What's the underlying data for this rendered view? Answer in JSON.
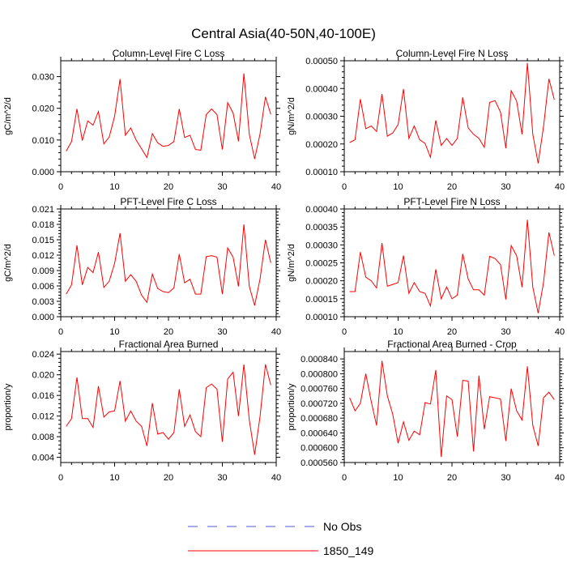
{
  "figure": {
    "title": "Central Asia(40-50N,40-100E)"
  },
  "legend": {
    "entries": [
      {
        "label": "No Obs",
        "color": "#4b5bd6",
        "dashed": true
      },
      {
        "label": "1850_149",
        "color": "#ff0000",
        "dashed": false
      }
    ]
  },
  "chart_data": [
    {
      "type": "line",
      "title": "Column-Level Fire C Loss",
      "ylabel": "gC/m^2/d",
      "xlim": [
        0,
        40
      ],
      "ylim": [
        0,
        0.035
      ],
      "xticks": [
        0,
        10,
        20,
        30,
        40
      ],
      "xtick_labels": [
        "0",
        "10",
        "20",
        "30",
        "40"
      ],
      "yticks": [
        0,
        0.01,
        0.02,
        0.03
      ],
      "ytick_labels": [
        "0.000",
        "0.010",
        "0.020",
        "0.030"
      ],
      "x": [
        1,
        2,
        3,
        4,
        5,
        6,
        7,
        8,
        9,
        10,
        11,
        12,
        13,
        14,
        15,
        16,
        17,
        18,
        19,
        20,
        21,
        22,
        23,
        24,
        25,
        26,
        27,
        28,
        29,
        30,
        31,
        32,
        33,
        34,
        35,
        36,
        37,
        38,
        39
      ],
      "series": [
        {
          "name": "1850_149",
          "color": "#ff0000",
          "values": [
            0.0065,
            0.0095,
            0.0198,
            0.0098,
            0.016,
            0.0147,
            0.019,
            0.0088,
            0.0109,
            0.0175,
            0.0292,
            0.0115,
            0.0138,
            0.01,
            0.0072,
            0.0045,
            0.012,
            0.0091,
            0.008,
            0.0083,
            0.0095,
            0.0198,
            0.0108,
            0.0115,
            0.007,
            0.0068,
            0.018,
            0.0198,
            0.018,
            0.007,
            0.0218,
            0.0185,
            0.0096,
            0.031,
            0.0118,
            0.004,
            0.012,
            0.0236,
            0.0181
          ]
        }
      ]
    },
    {
      "type": "line",
      "title": "Column-Level Fire N Loss",
      "ylabel": "gN/m^2/d",
      "xlim": [
        0,
        40
      ],
      "ylim": [
        0.0001,
        0.0005
      ],
      "xticks": [
        0,
        10,
        20,
        30,
        40
      ],
      "xtick_labels": [
        "0",
        "10",
        "20",
        "30",
        "40"
      ],
      "yticks": [
        0.0001,
        0.0002,
        0.0003,
        0.0004,
        0.0005
      ],
      "ytick_labels": [
        "0.00010",
        "0.00020",
        "0.00030",
        "0.00040",
        "0.00050"
      ],
      "x": [
        1,
        2,
        3,
        4,
        5,
        6,
        7,
        8,
        9,
        10,
        11,
        12,
        13,
        14,
        15,
        16,
        17,
        18,
        19,
        20,
        21,
        22,
        23,
        24,
        25,
        26,
        27,
        28,
        29,
        30,
        31,
        32,
        33,
        34,
        35,
        36,
        37,
        38,
        39
      ],
      "series": [
        {
          "name": "1850_149",
          "color": "#ff0000",
          "values": [
            0.000205,
            0.000215,
            0.000362,
            0.000255,
            0.000265,
            0.000245,
            0.00038,
            0.000228,
            0.00024,
            0.00027,
            0.000398,
            0.00022,
            0.000265,
            0.000215,
            0.000202,
            0.000152,
            0.000285,
            0.000195,
            0.00022,
            0.000195,
            0.00022,
            0.000368,
            0.000258,
            0.000235,
            0.00022,
            0.000188,
            0.00035,
            0.000356,
            0.000315,
            0.000185,
            0.000392,
            0.000355,
            0.000235,
            0.000492,
            0.000235,
            0.00013,
            0.000262,
            0.000435,
            0.00036
          ]
        }
      ]
    },
    {
      "type": "line",
      "title": "PFT-Level Fire C Loss",
      "ylabel": "gC/m^2/d",
      "xlim": [
        0,
        40
      ],
      "ylim": [
        0,
        0.021
      ],
      "xticks": [
        0,
        10,
        20,
        30,
        40
      ],
      "xtick_labels": [
        "0",
        "10",
        "20",
        "30",
        "40"
      ],
      "yticks": [
        0,
        0.003,
        0.006,
        0.009,
        0.012,
        0.015,
        0.018,
        0.021
      ],
      "ytick_labels": [
        "0.000",
        "0.003",
        "0.006",
        "0.009",
        "0.012",
        "0.015",
        "0.018",
        "0.021"
      ],
      "x": [
        1,
        2,
        3,
        4,
        5,
        6,
        7,
        8,
        9,
        10,
        11,
        12,
        13,
        14,
        15,
        16,
        17,
        18,
        19,
        20,
        21,
        22,
        23,
        24,
        25,
        26,
        27,
        28,
        29,
        30,
        31,
        32,
        33,
        34,
        35,
        36,
        37,
        38,
        39
      ],
      "series": [
        {
          "name": "1850_149",
          "color": "#ff0000",
          "values": [
            0.0044,
            0.0062,
            0.0139,
            0.0062,
            0.0096,
            0.0086,
            0.0126,
            0.0057,
            0.0069,
            0.0104,
            0.0163,
            0.0069,
            0.0082,
            0.0069,
            0.0042,
            0.0028,
            0.0083,
            0.0055,
            0.0049,
            0.0047,
            0.0056,
            0.0122,
            0.0066,
            0.0073,
            0.0044,
            0.0044,
            0.0117,
            0.0119,
            0.0116,
            0.0044,
            0.0134,
            0.0116,
            0.0059,
            0.018,
            0.0059,
            0.0022,
            0.0074,
            0.015,
            0.0105
          ]
        }
      ]
    },
    {
      "type": "line",
      "title": "PFT-Level Fire N Loss",
      "ylabel": "gN/m^2/d",
      "xlim": [
        0,
        40
      ],
      "ylim": [
        0.0001,
        0.0004
      ],
      "xticks": [
        0,
        10,
        20,
        30,
        40
      ],
      "xtick_labels": [
        "0",
        "10",
        "20",
        "30",
        "40"
      ],
      "yticks": [
        0.0001,
        0.00015,
        0.0002,
        0.00025,
        0.0003,
        0.00035,
        0.0004
      ],
      "ytick_labels": [
        "0.00010",
        "0.00015",
        "0.00020",
        "0.00025",
        "0.00030",
        "0.00035",
        "0.00040"
      ],
      "x": [
        1,
        2,
        3,
        4,
        5,
        6,
        7,
        8,
        9,
        10,
        11,
        12,
        13,
        14,
        15,
        16,
        17,
        18,
        19,
        20,
        21,
        22,
        23,
        24,
        25,
        26,
        27,
        28,
        29,
        30,
        31,
        32,
        33,
        34,
        35,
        36,
        37,
        38,
        39
      ],
      "series": [
        {
          "name": "1850_149",
          "color": "#ff0000",
          "values": [
            0.00017,
            0.00017,
            0.00028,
            0.00021,
            0.0002,
            0.00018,
            0.000305,
            0.000185,
            0.00019,
            0.000195,
            0.00027,
            0.000165,
            0.000195,
            0.00017,
            0.000165,
            0.00013,
            0.000232,
            0.00015,
            0.000183,
            0.00015,
            0.00016,
            0.000275,
            0.000205,
            0.000175,
            0.000175,
            0.00016,
            0.000268,
            0.000262,
            0.000245,
            0.000148,
            0.000298,
            0.00027,
            0.000182,
            0.00037,
            0.000182,
            0.00011,
            0.000195,
            0.000335,
            0.00027
          ]
        }
      ]
    },
    {
      "type": "line",
      "title": "Fractional Area Burned",
      "ylabel": "proportion/y",
      "xlim": [
        0,
        40
      ],
      "ylim": [
        0.003,
        0.0245
      ],
      "xticks": [
        0,
        10,
        20,
        30,
        40
      ],
      "xtick_labels": [
        "0",
        "10",
        "20",
        "30",
        "40"
      ],
      "yticks": [
        0.004,
        0.008,
        0.012,
        0.016,
        0.02,
        0.024
      ],
      "ytick_labels": [
        "0.004",
        "0.008",
        "0.012",
        "0.016",
        "0.020",
        "0.024"
      ],
      "x": [
        1,
        2,
        3,
        4,
        5,
        6,
        7,
        8,
        9,
        10,
        11,
        12,
        13,
        14,
        15,
        16,
        17,
        18,
        19,
        20,
        21,
        22,
        23,
        24,
        25,
        26,
        27,
        28,
        29,
        30,
        31,
        32,
        33,
        34,
        35,
        36,
        37,
        38,
        39
      ],
      "series": [
        {
          "name": "1850_149",
          "color": "#ff0000",
          "values": [
            0.01,
            0.0115,
            0.0195,
            0.0115,
            0.0115,
            0.0098,
            0.0178,
            0.0118,
            0.0128,
            0.013,
            0.0188,
            0.011,
            0.013,
            0.011,
            0.01,
            0.0062,
            0.0145,
            0.0085,
            0.0088,
            0.0075,
            0.0088,
            0.0172,
            0.01,
            0.0122,
            0.009,
            0.008,
            0.0175,
            0.0182,
            0.0172,
            0.007,
            0.0192,
            0.0205,
            0.012,
            0.022,
            0.0112,
            0.0045,
            0.012,
            0.022,
            0.018
          ]
        }
      ]
    },
    {
      "type": "line",
      "title": "Fractional Area Burned - Crop",
      "ylabel": "proportion/y",
      "xlim": [
        0,
        40
      ],
      "ylim": [
        0.00056,
        0.00086
      ],
      "xticks": [
        0,
        10,
        20,
        30,
        40
      ],
      "xtick_labels": [
        "0",
        "10",
        "20",
        "30",
        "40"
      ],
      "yticks": [
        0.00056,
        0.0006,
        0.00064,
        0.00068,
        0.00072,
        0.00076,
        0.0008,
        0.00084
      ],
      "ytick_labels": [
        "0.000560",
        "0.000600",
        "0.000640",
        "0.000680",
        "0.000720",
        "0.000760",
        "0.000800",
        "0.000840"
      ],
      "x": [
        1,
        2,
        3,
        4,
        5,
        6,
        7,
        8,
        9,
        10,
        11,
        12,
        13,
        14,
        15,
        16,
        17,
        18,
        19,
        20,
        21,
        22,
        23,
        24,
        25,
        26,
        27,
        28,
        29,
        30,
        31,
        32,
        33,
        34,
        35,
        36,
        37,
        38,
        39
      ],
      "series": [
        {
          "name": "1850_149",
          "color": "#ff0000",
          "values": [
            0.000735,
            0.0007,
            0.00072,
            0.0008,
            0.000725,
            0.00066,
            0.000835,
            0.00074,
            0.00069,
            0.000612,
            0.00067,
            0.00062,
            0.000645,
            0.000635,
            0.000722,
            0.000718,
            0.00081,
            0.000575,
            0.00074,
            0.00073,
            0.00063,
            0.000782,
            0.00078,
            0.00059,
            0.000795,
            0.00065,
            0.000738,
            0.000735,
            0.000732,
            0.000618,
            0.00076,
            0.0007,
            0.000675,
            0.00082,
            0.00066,
            0.000605,
            0.000735,
            0.00075,
            0.00073
          ]
        }
      ]
    }
  ]
}
